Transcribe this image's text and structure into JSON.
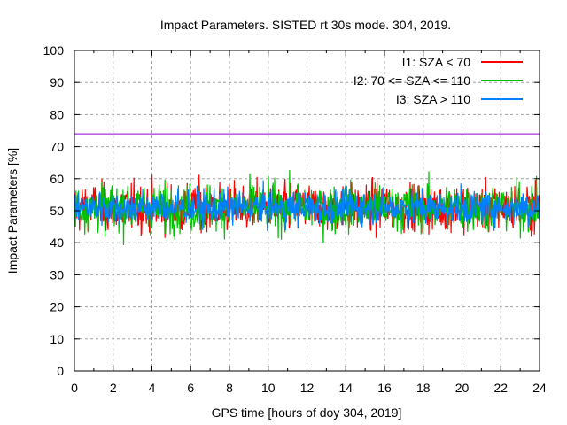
{
  "chart_data": {
    "type": "line",
    "title": "Impact Parameters. SISTED rt 30s mode. 304, 2019.",
    "xlabel": "GPS time [hours of doy 304, 2019]",
    "ylabel": "Impact Parameters [%]",
    "xlim": [
      0,
      24
    ],
    "ylim": [
      0,
      100
    ],
    "xticks": [
      0,
      2,
      4,
      6,
      8,
      10,
      12,
      14,
      16,
      18,
      20,
      22,
      24
    ],
    "yticks": [
      0,
      10,
      20,
      30,
      40,
      50,
      60,
      70,
      80,
      90,
      100
    ],
    "grid": true,
    "legend_position": "top-right",
    "threshold_line": {
      "value": 74,
      "color": "#9400d3"
    },
    "series": [
      {
        "name": "I1: SZA < 70",
        "color": "#ff0000",
        "mean": 51,
        "typical_range": [
          44,
          58
        ],
        "extreme_range": [
          38,
          69
        ]
      },
      {
        "name": "I2: 70 <= SZA <= 110",
        "color": "#00c000",
        "mean": 51,
        "typical_range": [
          44,
          58
        ],
        "extreme_range": [
          38,
          63
        ]
      },
      {
        "name": "I3: SZA > 110",
        "color": "#0080ff",
        "mean": 51,
        "typical_range": [
          46,
          56
        ],
        "extreme_range": [
          37,
          66
        ]
      }
    ]
  }
}
